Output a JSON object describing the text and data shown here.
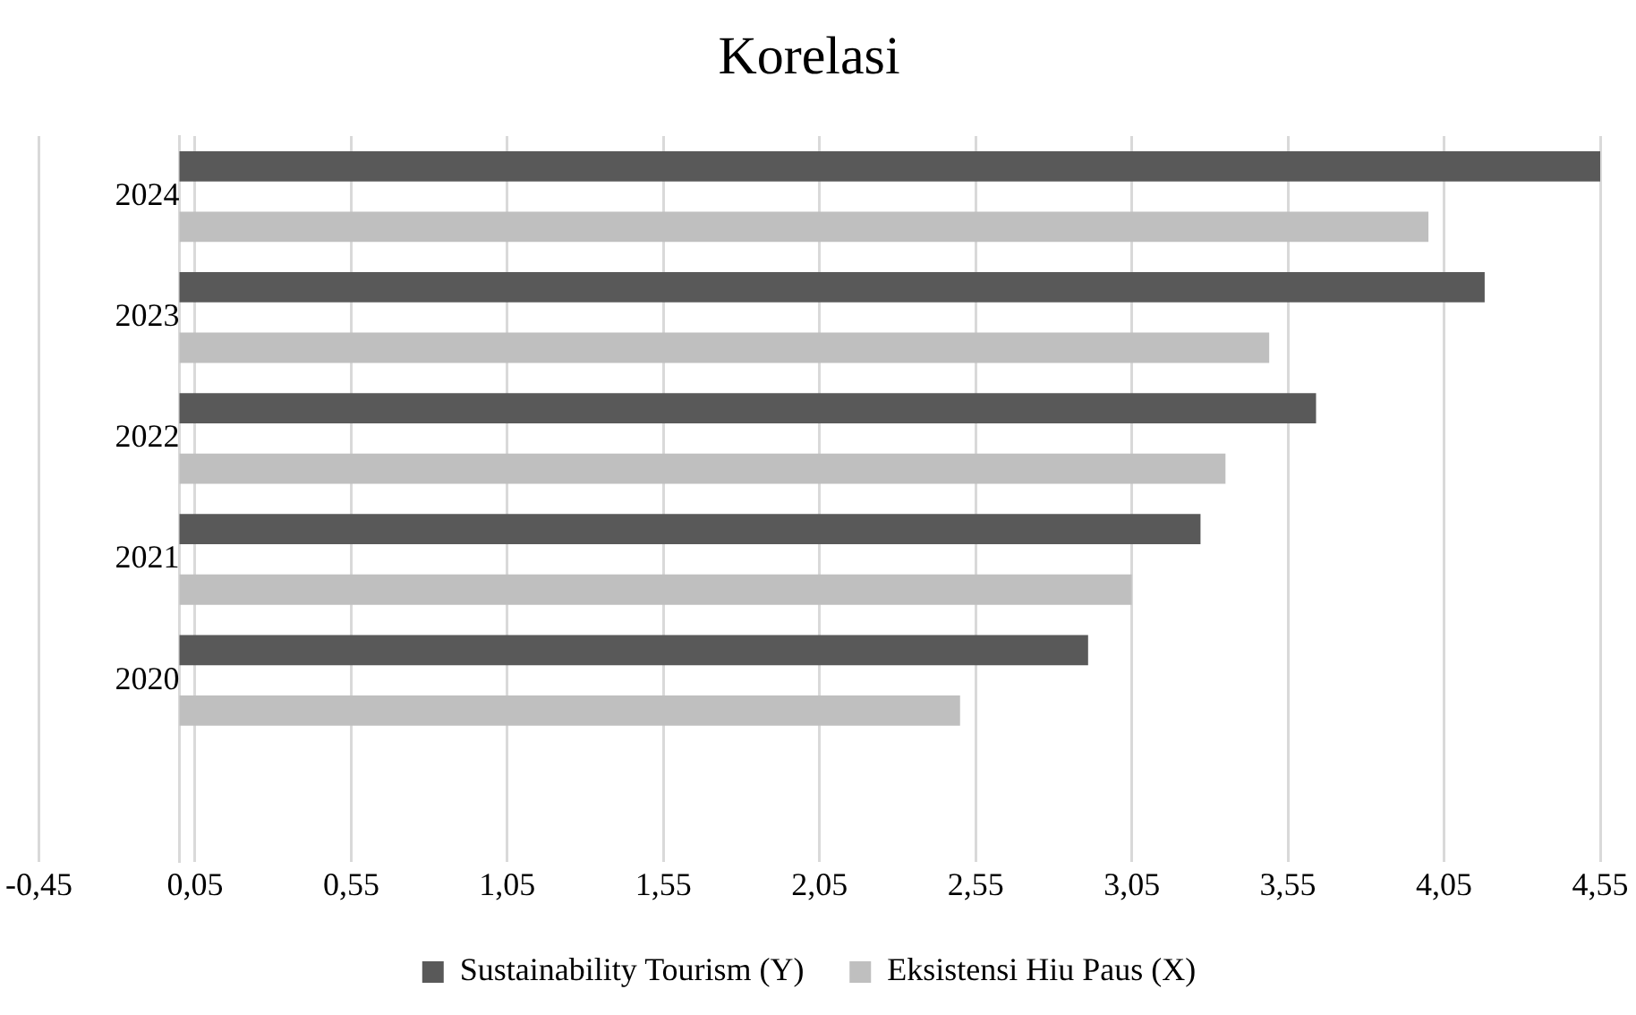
{
  "chart_data": {
    "type": "bar",
    "orientation": "horizontal",
    "title": "Korelasi",
    "categories": [
      "2024",
      "2023",
      "2022",
      "2021",
      "2020",
      null
    ],
    "series": [
      {
        "name": "Sustainability Tourism (Y)",
        "color": "#595959",
        "values": [
          4.55,
          4.18,
          3.64,
          3.27,
          2.91,
          null
        ]
      },
      {
        "name": "Eksistensi Hiu Paus (X)",
        "color": "#bfbfbf",
        "values": [
          4.0,
          3.49,
          3.35,
          3.05,
          2.5,
          null
        ]
      }
    ],
    "xlim": [
      -0.45,
      4.55
    ],
    "xticks": [
      {
        "value": -0.45,
        "label": "-0,45"
      },
      {
        "value": 0.05,
        "label": "0,05"
      },
      {
        "value": 0.55,
        "label": "0,55"
      },
      {
        "value": 1.05,
        "label": "1,05"
      },
      {
        "value": 1.55,
        "label": "1,55"
      },
      {
        "value": 2.05,
        "label": "2,05"
      },
      {
        "value": 2.55,
        "label": "2,55"
      },
      {
        "value": 3.05,
        "label": "3,05"
      },
      {
        "value": 3.55,
        "label": "3,55"
      },
      {
        "value": 4.05,
        "label": "4,05"
      },
      {
        "value": 4.55,
        "label": "4,55"
      }
    ],
    "grid": "x",
    "legend": "bottom"
  }
}
